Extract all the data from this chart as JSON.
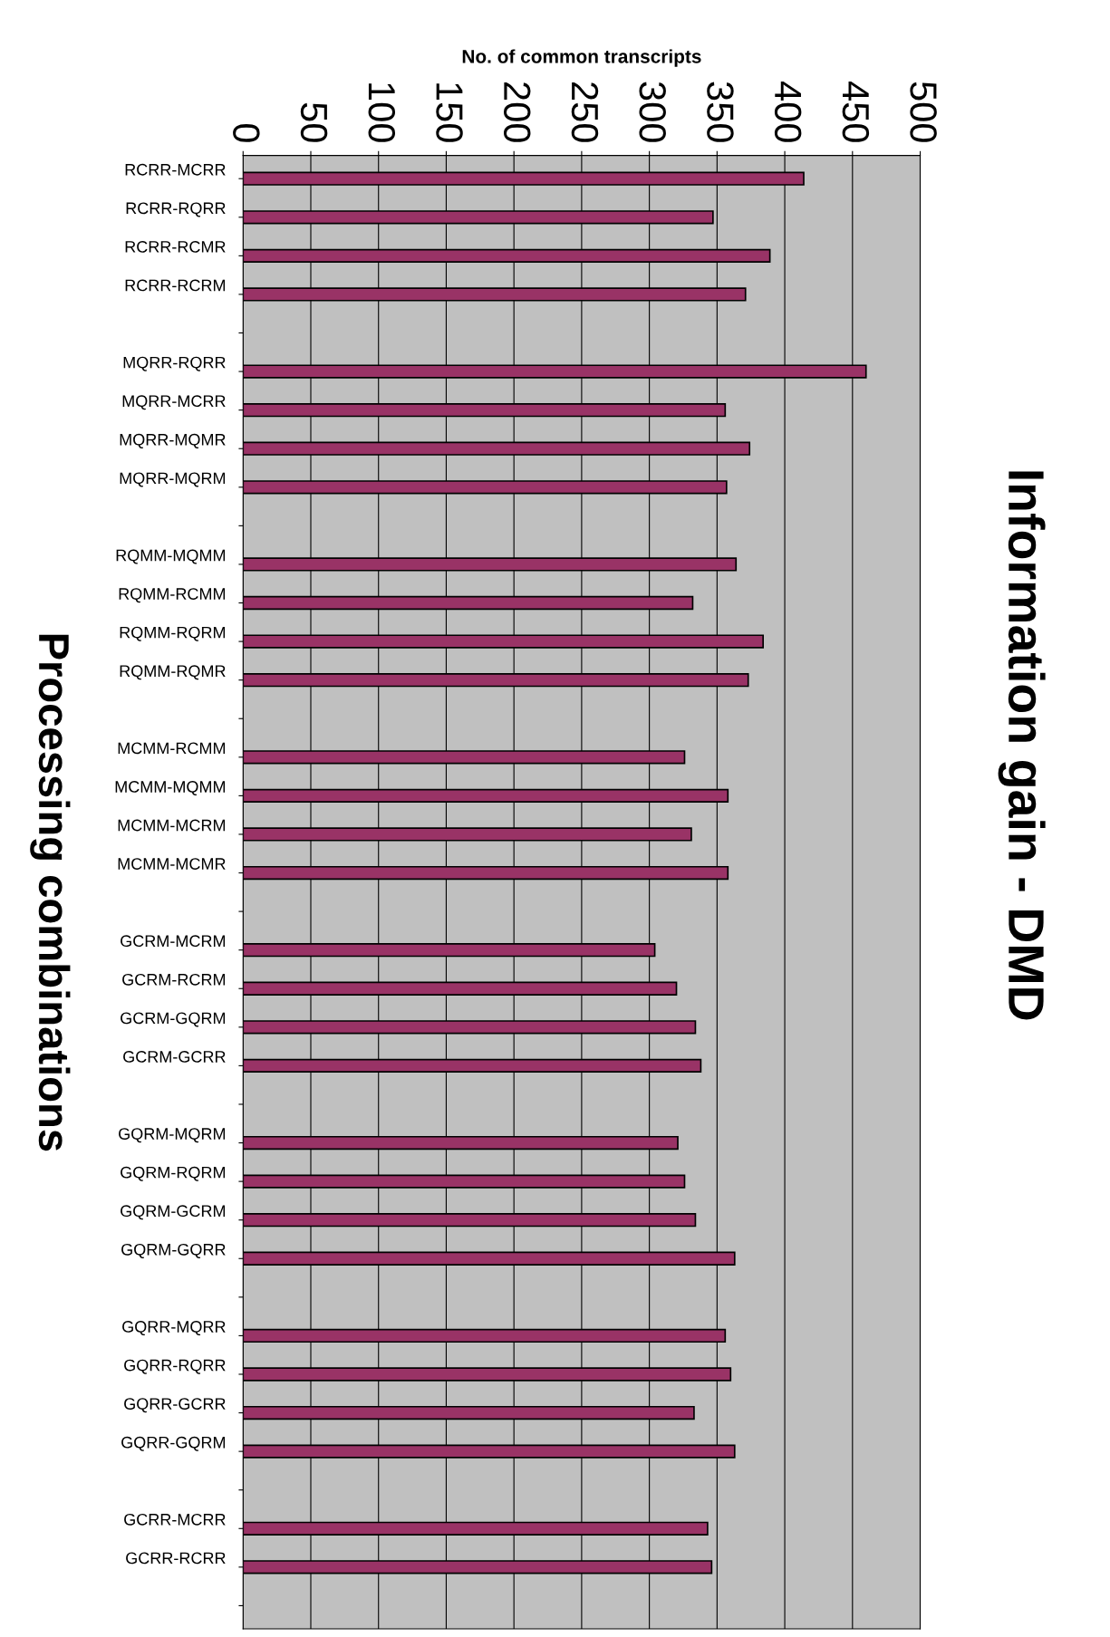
{
  "chart_data": {
    "type": "bar",
    "orientation": "horizontal",
    "title": "Information gain - DMD",
    "xlabel": "No. of common transcripts",
    "ylabel": "Processing combinations",
    "categories": [
      "RCRR-MCRR",
      "RCRR-RQRR",
      "RCRR-RCMR",
      "RCRR-RCRM",
      null,
      "MQRR-RQRR",
      "MQRR-MCRR",
      "MQRR-MQMR",
      "MQRR-MQRM",
      null,
      "RQMM-MQMM",
      "RQMM-RCMM",
      "RQMM-RQRM",
      "RQMM-RQMR",
      null,
      "MCMM-RCMM",
      "MCMM-MQMM",
      "MCMM-MCRM",
      "MCMM-MCMR",
      null,
      "GCRM-MCRM",
      "GCRM-RCRM",
      "GCRM-GQRM",
      "GCRM-GCRR",
      null,
      "GQRM-MQRM",
      "GQRM-RQRM",
      "GQRM-GCRM",
      "GQRM-GQRR",
      null,
      "GQRR-MQRR",
      "GQRR-RQRR",
      "GQRR-GCRR",
      "GQRR-GQRM",
      null,
      "GCRR-MCRR",
      "GCRR-RCRR",
      null
    ],
    "values": [
      414,
      347,
      389,
      371,
      null,
      460,
      356,
      374,
      357,
      null,
      364,
      332,
      384,
      373,
      null,
      326,
      358,
      331,
      358,
      null,
      304,
      320,
      334,
      338,
      null,
      321,
      326,
      334,
      363,
      null,
      356,
      360,
      333,
      363,
      null,
      343,
      346,
      null
    ],
    "color": "#993366",
    "xlim": [
      0,
      500
    ],
    "xticks": [
      0,
      50,
      100,
      150,
      200,
      250,
      300,
      350,
      400,
      450,
      500
    ],
    "grid": "x",
    "legend": false
  }
}
